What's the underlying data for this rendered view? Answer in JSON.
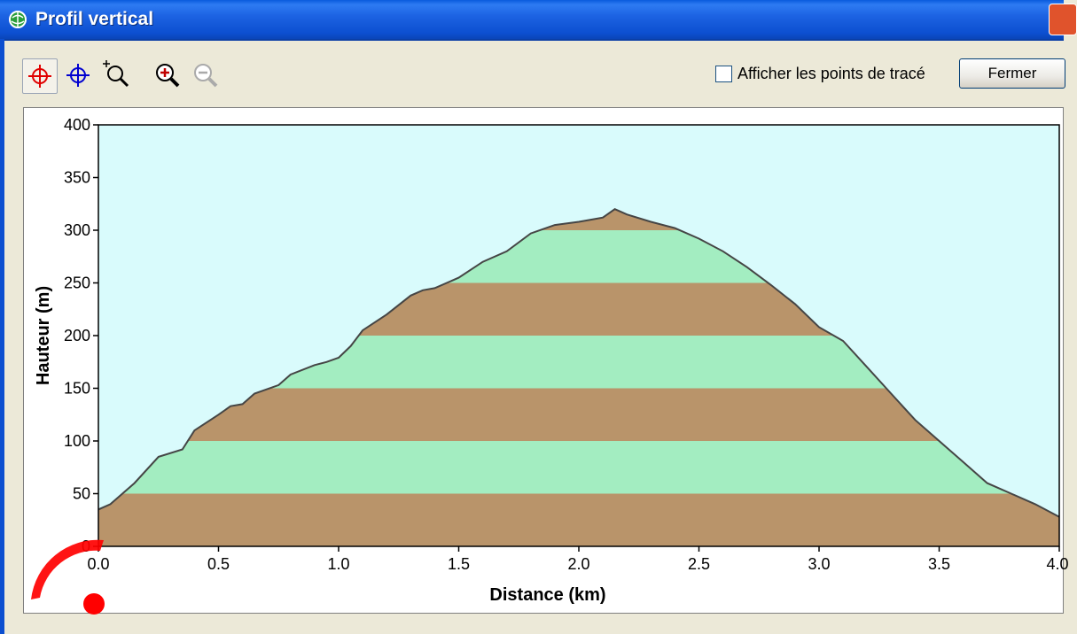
{
  "window": {
    "title": "Profil vertical",
    "close_color": "#E0532C"
  },
  "toolbar": {
    "tools": [
      {
        "name": "crosshair-red-icon",
        "color": "#E00000"
      },
      {
        "name": "crosshair-blue-icon",
        "color": "#0000D0"
      },
      {
        "name": "zoom-box-icon"
      },
      {
        "name": "zoom-in-icon"
      },
      {
        "name": "zoom-out-icon"
      }
    ],
    "show_points_label": "Afficher les points de tracé",
    "show_points_checked": false,
    "close_label": "Fermer"
  },
  "colors": {
    "sky": "#D9FBFC",
    "earth": "#B9946A",
    "grass": "#A3EDC1",
    "outline": "#454545",
    "marker": "#FF0000"
  },
  "chart_data": {
    "type": "area",
    "xlabel": "Distance   (km)",
    "ylabel": "Hauteur (m)",
    "xlim": [
      0,
      4
    ],
    "ylim": [
      0,
      400
    ],
    "x_ticks": [
      "0.0",
      "0.5",
      "1.0",
      "1.5",
      "2.0",
      "2.5",
      "3.0",
      "3.5",
      "4.0"
    ],
    "y_ticks": [
      "0",
      "50",
      "100",
      "150",
      "200",
      "250",
      "300",
      "350",
      "400"
    ],
    "band_interval": 50,
    "grid": false,
    "profile": {
      "x": [
        0.0,
        0.05,
        0.15,
        0.25,
        0.35,
        0.4,
        0.5,
        0.55,
        0.6,
        0.65,
        0.75,
        0.8,
        0.9,
        0.95,
        1.0,
        1.05,
        1.1,
        1.2,
        1.3,
        1.35,
        1.4,
        1.5,
        1.6,
        1.7,
        1.8,
        1.85,
        1.9,
        2.0,
        2.05,
        2.1,
        2.15,
        2.17,
        2.2,
        2.3,
        2.4,
        2.5,
        2.6,
        2.7,
        2.8,
        2.9,
        3.0,
        3.1,
        3.2,
        3.3,
        3.4,
        3.5,
        3.6,
        3.7,
        3.8,
        3.9,
        4.0
      ],
      "y": [
        35,
        40,
        60,
        85,
        92,
        110,
        125,
        133,
        135,
        145,
        153,
        163,
        172,
        175,
        179,
        190,
        205,
        220,
        238,
        243,
        245,
        255,
        270,
        280,
        297,
        301,
        305,
        308,
        310,
        312,
        320,
        318,
        315,
        308,
        302,
        292,
        280,
        265,
        248,
        230,
        208,
        195,
        170,
        145,
        120,
        100,
        80,
        60,
        50,
        40,
        28
      ]
    }
  }
}
